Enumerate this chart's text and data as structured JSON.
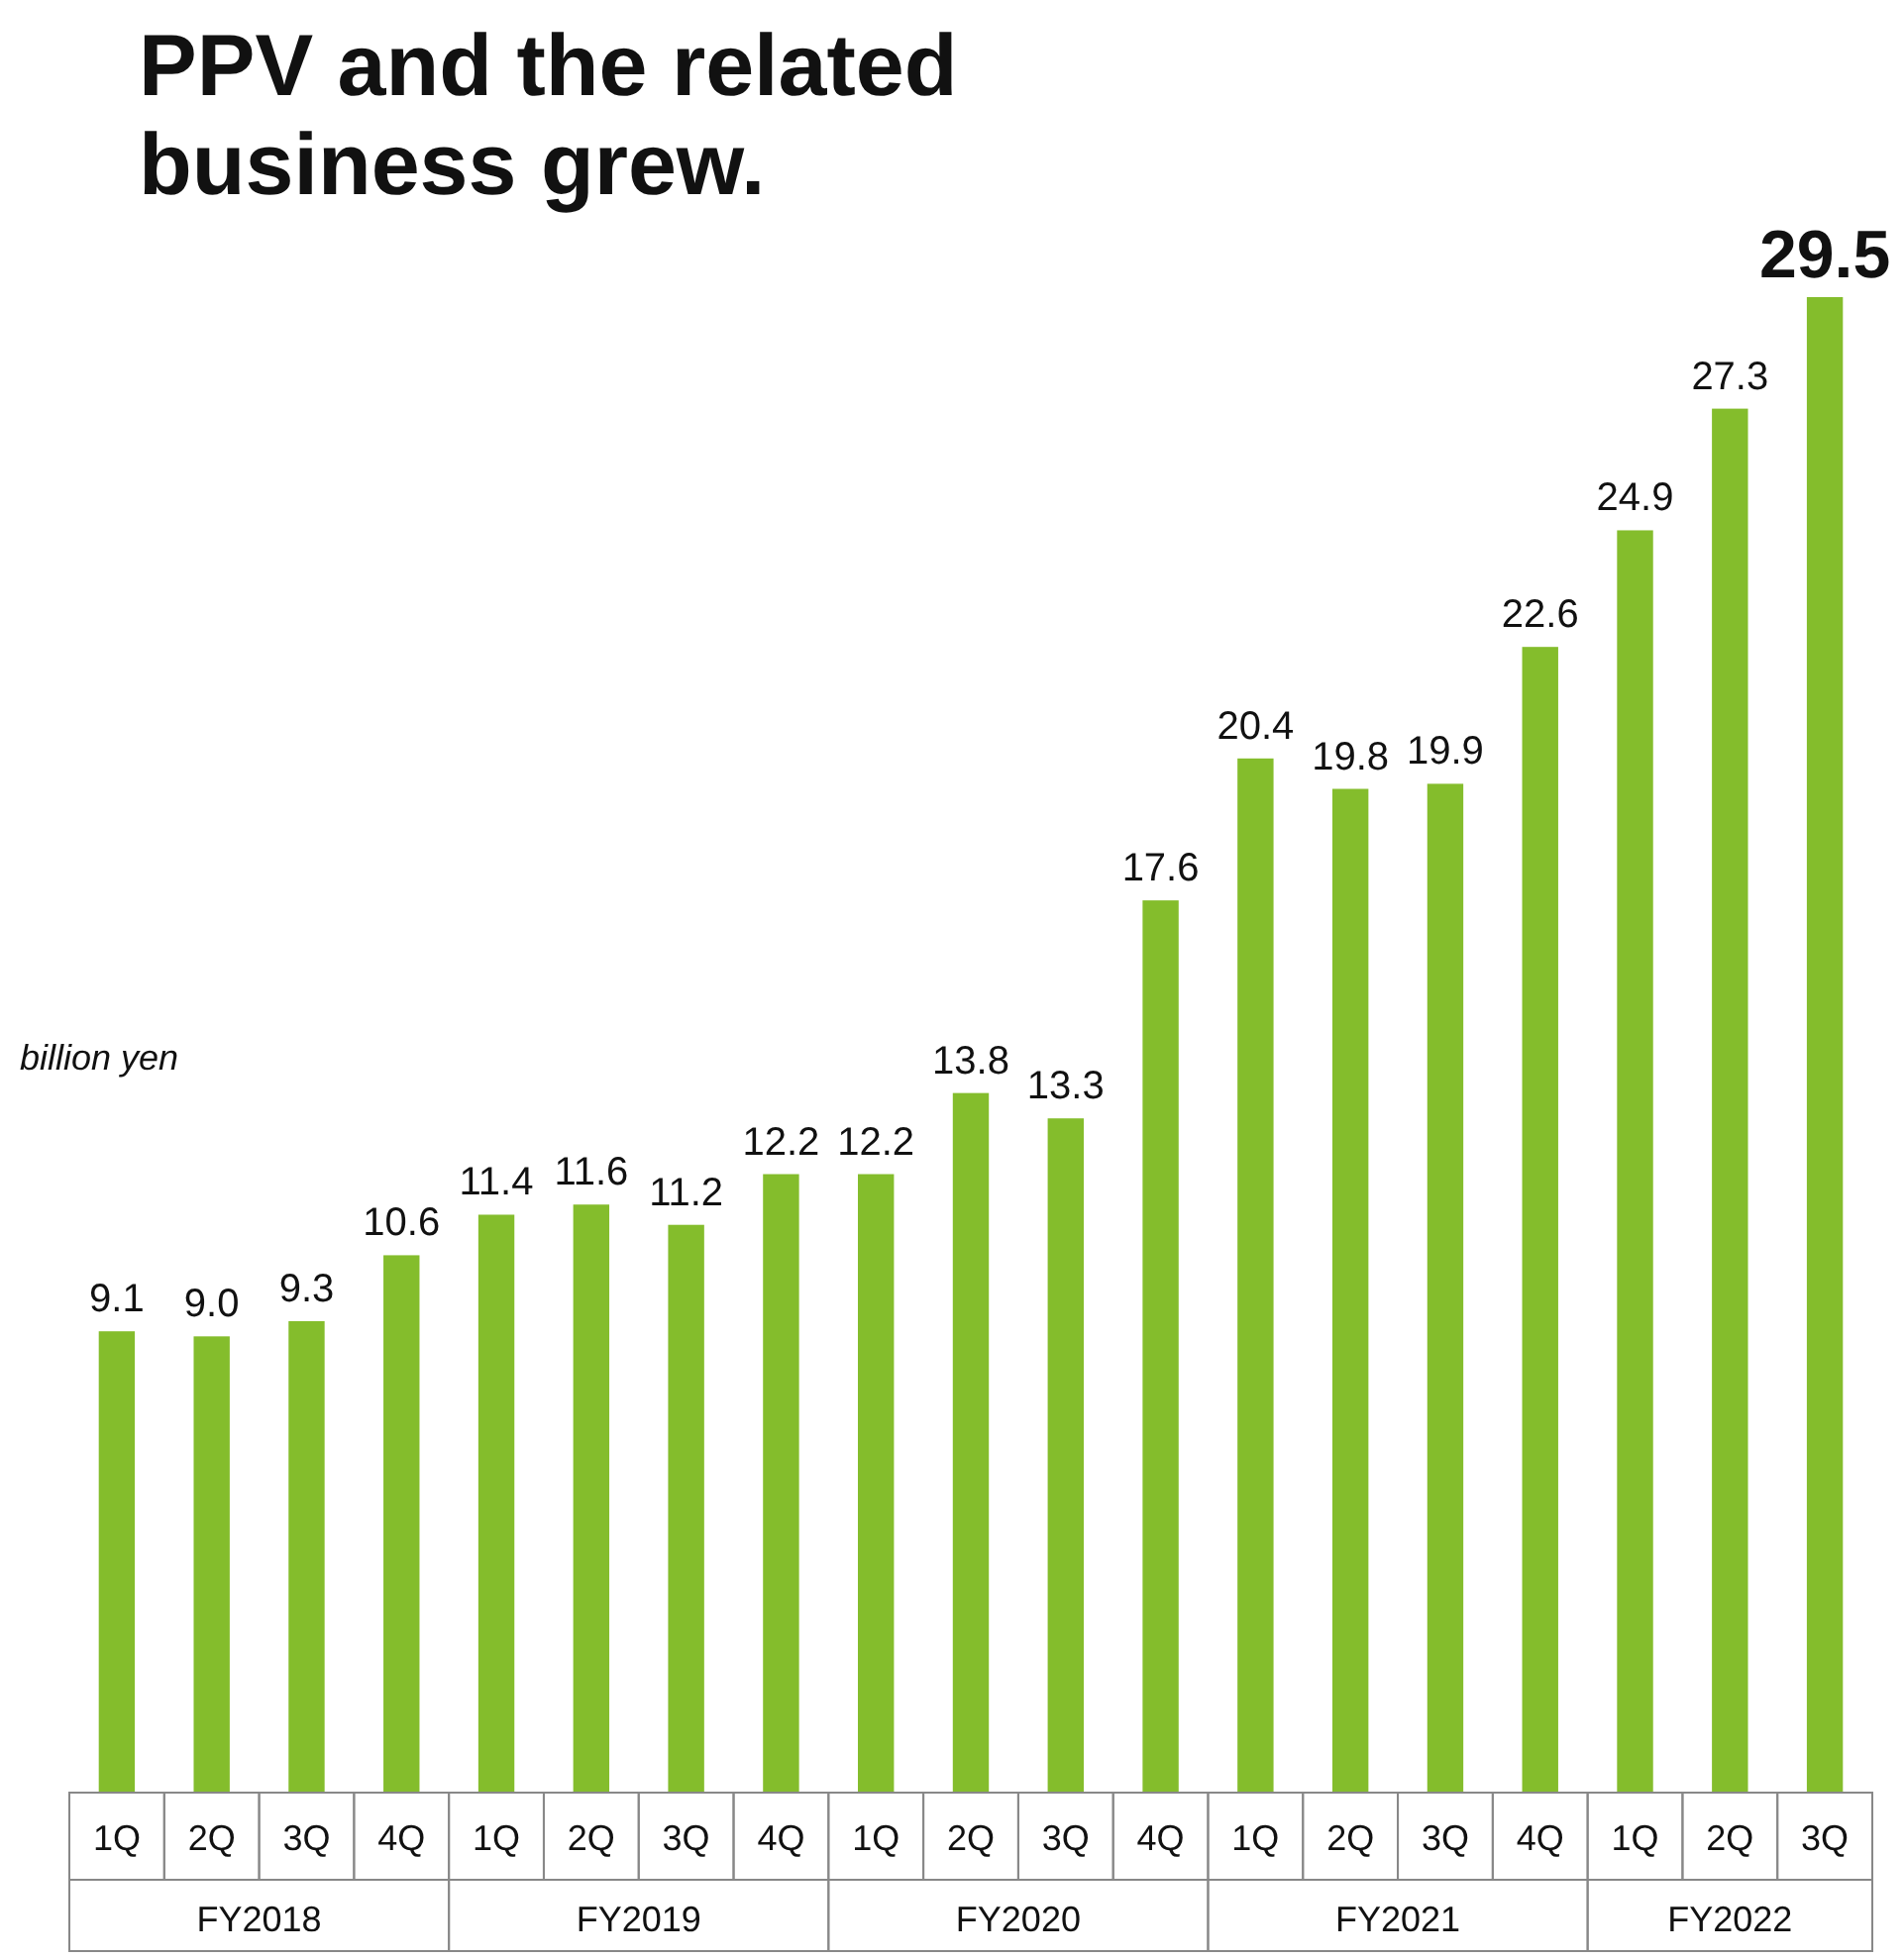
{
  "chart_data": {
    "type": "bar",
    "title": "PPV and the related business grew.",
    "ylabel": "billion yen",
    "categories": [
      "1Q",
      "2Q",
      "3Q",
      "4Q",
      "1Q",
      "2Q",
      "3Q",
      "4Q",
      "1Q",
      "2Q",
      "3Q",
      "4Q",
      "1Q",
      "2Q",
      "3Q",
      "4Q",
      "1Q",
      "2Q",
      "3Q"
    ],
    "values": [
      9.1,
      9.0,
      9.3,
      10.6,
      11.4,
      11.6,
      11.2,
      12.2,
      12.2,
      13.8,
      13.3,
      17.6,
      20.4,
      19.8,
      19.9,
      22.6,
      24.9,
      27.3,
      29.5
    ],
    "color": "#84bd2c",
    "value_labels": [
      "9.1",
      "9.0",
      "9.3",
      "10.6",
      "11.4",
      "11.6",
      "11.2",
      "12.2",
      "12.2",
      "13.8",
      "13.3",
      "17.6",
      "20.4",
      "19.8",
      "19.9",
      "22.6",
      "24.9",
      "27.3",
      "29.5"
    ],
    "annotations": [
      "FY2018",
      "FY2019",
      "FY2020",
      "FY2021",
      "FY2022"
    ]
  }
}
